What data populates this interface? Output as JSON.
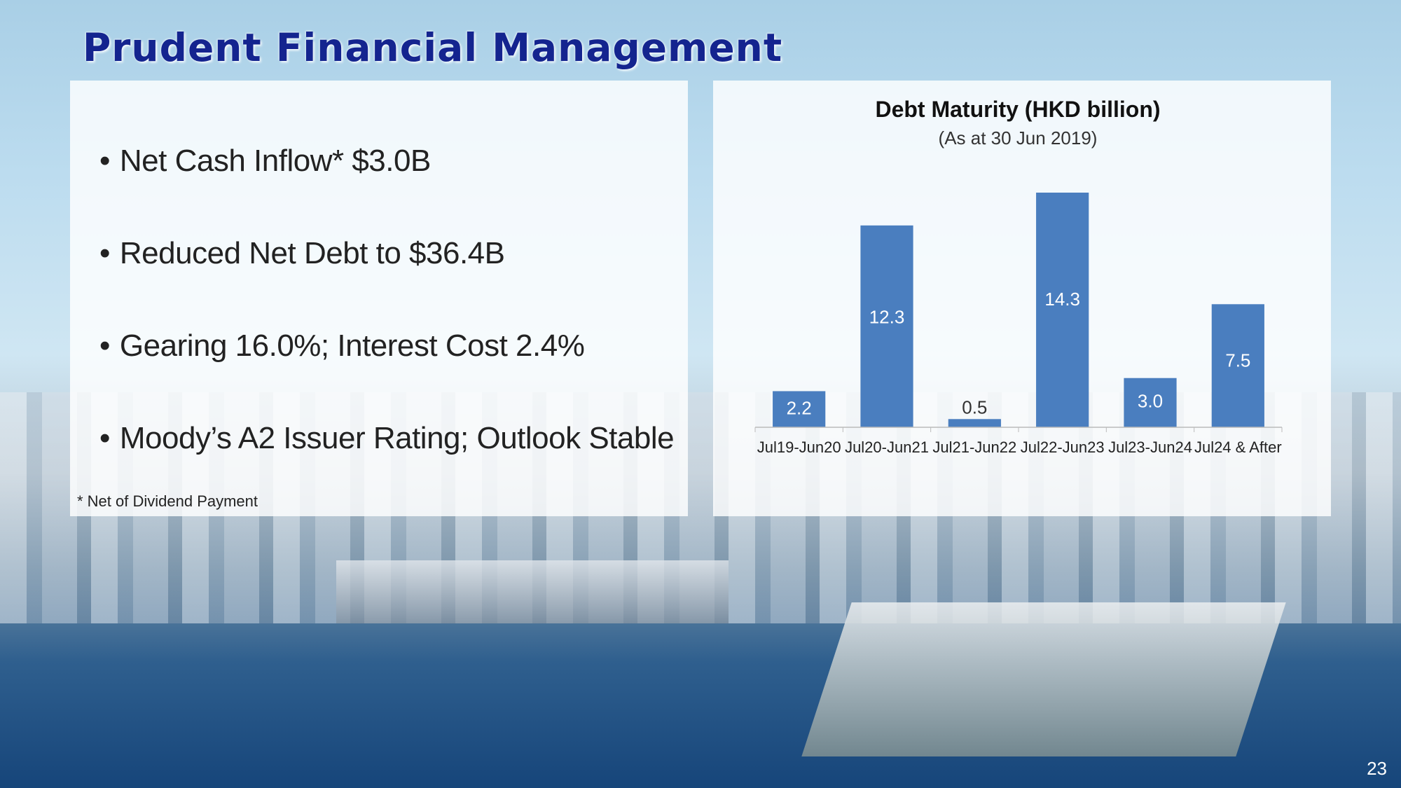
{
  "slide": {
    "title": "Prudent Financial Management",
    "bullets": [
      "Net Cash Inflow* $3.0B",
      "Reduced Net Debt to $36.4B",
      "Gearing 16.0%; Interest Cost 2.4%",
      "Moody’s A2 Issuer Rating; Outlook Stable"
    ],
    "footnote": "* Net of Dividend Payment",
    "page_number": "23"
  },
  "chart_data": {
    "type": "bar",
    "title": "Debt Maturity (HKD billion)",
    "subtitle": "(As at 30 Jun 2019)",
    "categories": [
      "Jul19-Jun20",
      "Jul20-Jun21",
      "Jul21-Jun22",
      "Jul22-Jun23",
      "Jul23-Jun24",
      "Jul24 & After"
    ],
    "values": [
      2.2,
      12.3,
      0.5,
      14.3,
      3.0,
      7.5
    ],
    "value_labels": [
      "2.2",
      "12.3",
      "0.5",
      "14.3",
      "3.0",
      "7.5"
    ],
    "xlabel": "",
    "ylabel": "",
    "ylim": [
      0,
      14.3
    ],
    "grid": false,
    "legend": "none",
    "bar_color": "#4a7ebf",
    "label_color_inside": "#ffffff",
    "label_color_outside": "#333333"
  }
}
